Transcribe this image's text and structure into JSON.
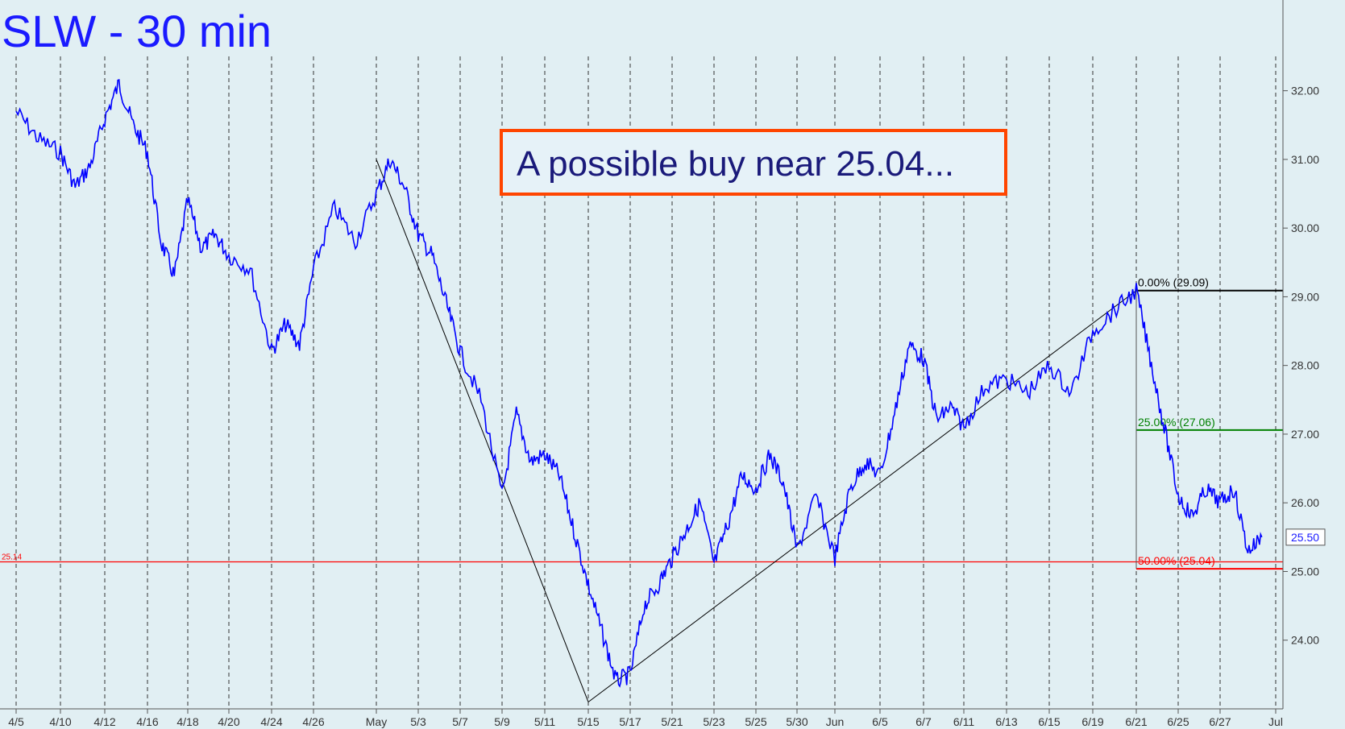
{
  "chart_data": {
    "type": "line",
    "title": "SLW - 30 min",
    "annotation": "A possible buy near 25.04...",
    "x_ticks": [
      "4/5",
      "4/10",
      "4/12",
      "4/16",
      "4/18",
      "4/20",
      "4/24",
      "4/26",
      "May",
      "5/3",
      "5/7",
      "5/9",
      "5/11",
      "5/15",
      "5/17",
      "5/21",
      "5/23",
      "5/25",
      "5/30",
      "Jun",
      "6/5",
      "6/7",
      "6/11",
      "6/13",
      "6/15",
      "6/19",
      "6/21",
      "6/25",
      "6/27",
      "Jul"
    ],
    "y_ticks": [
      "32.00",
      "31.00",
      "30.00",
      "29.00",
      "28.00",
      "27.00",
      "26.00",
      "25.00",
      "24.00"
    ],
    "ylim": [
      23.0,
      32.5
    ],
    "last_price": "25.50",
    "horizontal_line": {
      "label": "25.14",
      "value": 25.14,
      "color": "#ff0000"
    },
    "fib_levels": [
      {
        "label": "0.00% (29.09)",
        "value": 29.09,
        "color": "#000000"
      },
      {
        "label": "25.00% (27.06)",
        "value": 27.06,
        "color": "#008000"
      },
      {
        "label": "50.00% (25.04)",
        "value": 25.04,
        "color": "#ff0000"
      }
    ],
    "trendlines": [
      {
        "points": [
          [
            "May",
            31.0
          ],
          [
            "5/15",
            23.1
          ]
        ]
      },
      {
        "points": [
          [
            "5/15",
            23.1
          ],
          [
            "6/21",
            29.09
          ]
        ]
      }
    ],
    "series": [
      {
        "color": "#0000ff",
        "points": [
          [
            "4/5",
            31.7
          ],
          [
            "4/5",
            31.3
          ],
          [
            "4/10",
            31.1
          ],
          [
            "4/10",
            30.6
          ],
          [
            "4/10",
            30.9
          ],
          [
            "4/12",
            31.6
          ],
          [
            "4/12",
            32.1
          ],
          [
            "4/12",
            31.5
          ],
          [
            "4/16",
            31.1
          ],
          [
            "4/16",
            29.8
          ],
          [
            "4/16",
            29.3
          ],
          [
            "4/18",
            30.4
          ],
          [
            "4/18",
            29.7
          ],
          [
            "4/18",
            29.9
          ],
          [
            "4/20",
            29.6
          ],
          [
            "4/20",
            29.4
          ],
          [
            "4/24",
            28.2
          ],
          [
            "4/24",
            28.6
          ],
          [
            "4/24",
            28.3
          ],
          [
            "4/26",
            29.4
          ],
          [
            "4/26",
            30.3
          ],
          [
            "4/26",
            29.8
          ],
          [
            "May",
            30.5
          ],
          [
            "May",
            31.0
          ],
          [
            "May",
            30.6
          ],
          [
            "5/3",
            29.9
          ],
          [
            "5/3",
            29.6
          ],
          [
            "5/3",
            28.9
          ],
          [
            "5/7",
            28.2
          ],
          [
            "5/7",
            27.5
          ],
          [
            "5/9",
            26.1
          ],
          [
            "5/9",
            27.3
          ],
          [
            "5/9",
            26.6
          ],
          [
            "5/11",
            26.7
          ],
          [
            "5/11",
            26.4
          ],
          [
            "5/11",
            25.6
          ],
          [
            "5/15",
            24.8
          ],
          [
            "5/15",
            24.1
          ],
          [
            "5/15",
            23.4
          ],
          [
            "5/17",
            23.5
          ],
          [
            "5/17",
            24.5
          ],
          [
            "5/17",
            24.8
          ],
          [
            "5/21",
            25.2
          ],
          [
            "5/21",
            25.6
          ],
          [
            "5/21",
            26.0
          ],
          [
            "5/23",
            25.1
          ],
          [
            "5/23",
            25.7
          ],
          [
            "5/23",
            26.4
          ],
          [
            "5/25",
            26.2
          ],
          [
            "5/25",
            26.7
          ],
          [
            "5/25",
            26.3
          ],
          [
            "5/30",
            25.3
          ],
          [
            "5/30",
            26.1
          ],
          [
            "Jun",
            25.2
          ],
          [
            "Jun",
            26.2
          ],
          [
            "Jun",
            26.6
          ],
          [
            "6/5",
            26.4
          ],
          [
            "6/5",
            27.3
          ],
          [
            "6/5",
            28.3
          ],
          [
            "6/7",
            28.1
          ],
          [
            "6/7",
            27.2
          ],
          [
            "6/7",
            27.4
          ],
          [
            "6/11",
            27.1
          ],
          [
            "6/11",
            27.7
          ],
          [
            "6/13",
            27.8
          ],
          [
            "6/13",
            27.6
          ],
          [
            "6/15",
            28.0
          ],
          [
            "6/15",
            27.6
          ],
          [
            "6/19",
            28.5
          ],
          [
            "6/19",
            28.8
          ],
          [
            "6/21",
            29.09
          ],
          [
            "6/21",
            28.1
          ],
          [
            "6/21",
            27.1
          ],
          [
            "6/25",
            26.1
          ],
          [
            "6/25",
            25.8
          ],
          [
            "6/25",
            26.2
          ],
          [
            "6/27",
            26.0
          ],
          [
            "6/27",
            26.2
          ],
          [
            "6/27",
            25.3
          ],
          [
            "6/27",
            25.5
          ]
        ]
      }
    ]
  }
}
